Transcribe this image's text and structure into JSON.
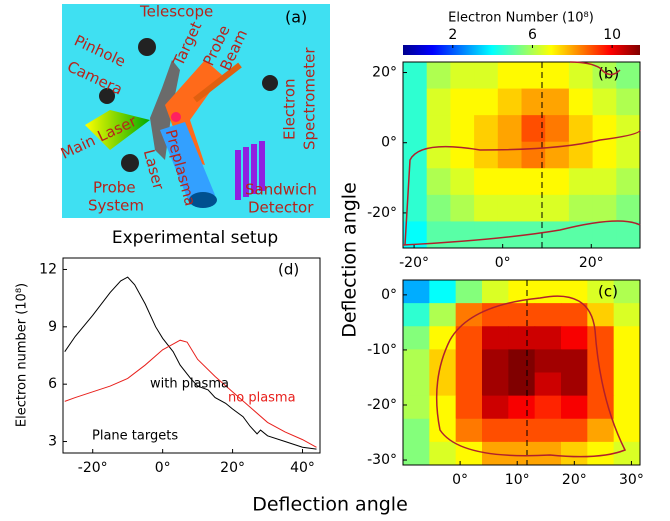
{
  "setup": {
    "panel": "(a)",
    "caption": "Experimental setup",
    "labels": {
      "telescope": "Telescope",
      "pinhole": "Pinhole",
      "camera": "Camera",
      "target": "Target",
      "probe": "Probe",
      "beam": "Beam",
      "electron": "Electron",
      "spectrometer": "Spectrometer",
      "main_laser": "Main Laser",
      "preplasma": "Preplasma",
      "laser": "Laser",
      "probe2": "Probe",
      "system": "System",
      "sandwich": "Sandwich",
      "detector": "Detector"
    }
  },
  "chart_data": [
    {
      "type": "heatmap",
      "panel": "(b)",
      "ylabel": "Deflection angle",
      "colorbar": {
        "label": "Electron Number (10⁸)",
        "lim": [
          -0.5,
          11.4
        ],
        "ticks": [
          2,
          6,
          10
        ]
      },
      "xlim": [
        -22.5,
        31
      ],
      "ylim": [
        -30,
        23
      ],
      "xticks": [
        {
          "value": -20,
          "label": "-20°"
        },
        {
          "value": 0,
          "label": "0°"
        },
        {
          "value": 20,
          "label": "20°"
        }
      ],
      "yticks": [
        {
          "value": 20,
          "label": "20°"
        },
        {
          "value": 0,
          "label": "0°"
        },
        {
          "value": -20,
          "label": "-20°"
        }
      ],
      "z": [
        [
          4.5,
          6,
          6.5,
          6.5,
          7,
          7,
          7,
          6.5,
          6,
          5.5
        ],
        [
          4.5,
          6.5,
          7,
          7,
          7.5,
          8,
          8,
          7,
          6.5,
          6
        ],
        [
          4.5,
          6.5,
          7,
          7.5,
          8,
          9,
          8.5,
          7.5,
          7,
          6.5
        ],
        [
          4.5,
          6.5,
          7,
          7.5,
          8,
          8.5,
          8,
          7.5,
          7,
          6.5
        ],
        [
          4.5,
          6,
          6.5,
          7,
          7,
          7,
          7,
          6.5,
          6.5,
          6
        ],
        [
          4.5,
          5.5,
          6,
          6.5,
          6.5,
          6.5,
          6.5,
          6,
          6,
          5.5
        ],
        [
          4,
          5,
          5,
          5,
          5,
          5,
          5,
          5,
          5,
          5
        ]
      ]
    },
    {
      "type": "heatmap",
      "panel": "(c)",
      "xlim": [
        -10,
        31.5
      ],
      "ylim": [
        -30.9,
        2.7
      ],
      "xticks": [
        {
          "value": 0,
          "label": "0°"
        },
        {
          "value": 10,
          "label": "10°"
        },
        {
          "value": 20,
          "label": "20°"
        },
        {
          "value": 30,
          "label": "30°"
        }
      ],
      "yticks": [
        {
          "value": 0,
          "label": "0°"
        },
        {
          "value": -10,
          "label": "-10°"
        },
        {
          "value": -20,
          "label": "-20°"
        },
        {
          "value": -30,
          "label": "-30°"
        }
      ],
      "z": [
        [
          3,
          4,
          5.5,
          6.5,
          7,
          7,
          7,
          6.5,
          6
        ],
        [
          4.5,
          6,
          8.5,
          9,
          9,
          9,
          9,
          7.5,
          6.5
        ],
        [
          5.5,
          7,
          9,
          10.5,
          10.5,
          10.5,
          10,
          9,
          7
        ],
        [
          6,
          7.5,
          9,
          11,
          11.5,
          11,
          11,
          9,
          7
        ],
        [
          6,
          7.5,
          9,
          11,
          11.5,
          10.5,
          11,
          9,
          7
        ],
        [
          6,
          7,
          9,
          10.5,
          10,
          9.5,
          10,
          9,
          7
        ],
        [
          5.5,
          7,
          8.5,
          9,
          9,
          9,
          9,
          8,
          7
        ],
        [
          5.5,
          6.5,
          7,
          8,
          8,
          8,
          7.5,
          7,
          6.5
        ]
      ]
    },
    {
      "type": "line",
      "panel": "(d)",
      "xlabel": "Deflection angle",
      "ylabel": "Electron number (10⁸)",
      "annotation": "Plane targets",
      "xlim": [
        -28.5,
        45
      ],
      "ylim": [
        2.4,
        12.6
      ],
      "xticks": [
        {
          "value": -20,
          "label": "-20°"
        },
        {
          "value": 0,
          "label": "0°"
        },
        {
          "value": 20,
          "label": "20°"
        },
        {
          "value": 40,
          "label": "40°"
        }
      ],
      "yticks": [
        3,
        6,
        9,
        12
      ],
      "series": [
        {
          "name": "with plasma",
          "color": "#000000",
          "x": [
            -28,
            -25,
            -20,
            -15,
            -12,
            -10,
            -8,
            -5,
            -2,
            0,
            3,
            5,
            8,
            10,
            13,
            15,
            18,
            20,
            23,
            25,
            27,
            28,
            30,
            35,
            40,
            44
          ],
          "values": [
            7.7,
            8.5,
            9.6,
            10.8,
            11.4,
            11.6,
            11.2,
            10.2,
            9.0,
            8.4,
            7.7,
            7.0,
            6.3,
            5.9,
            5.7,
            5.3,
            5.0,
            4.7,
            4.3,
            3.8,
            3.4,
            3.6,
            3.3,
            3.0,
            2.7,
            2.6
          ]
        },
        {
          "name": "no plasma",
          "color": "#e8201c",
          "x": [
            -28,
            -25,
            -20,
            -15,
            -10,
            -5,
            0,
            3,
            5,
            7,
            10,
            15,
            20,
            25,
            30,
            35,
            40,
            44
          ],
          "values": [
            5.1,
            5.3,
            5.6,
            5.9,
            6.3,
            7.0,
            7.8,
            8.1,
            8.3,
            8.2,
            7.3,
            6.4,
            5.6,
            4.8,
            4.0,
            3.5,
            3.1,
            2.7
          ]
        }
      ]
    }
  ]
}
